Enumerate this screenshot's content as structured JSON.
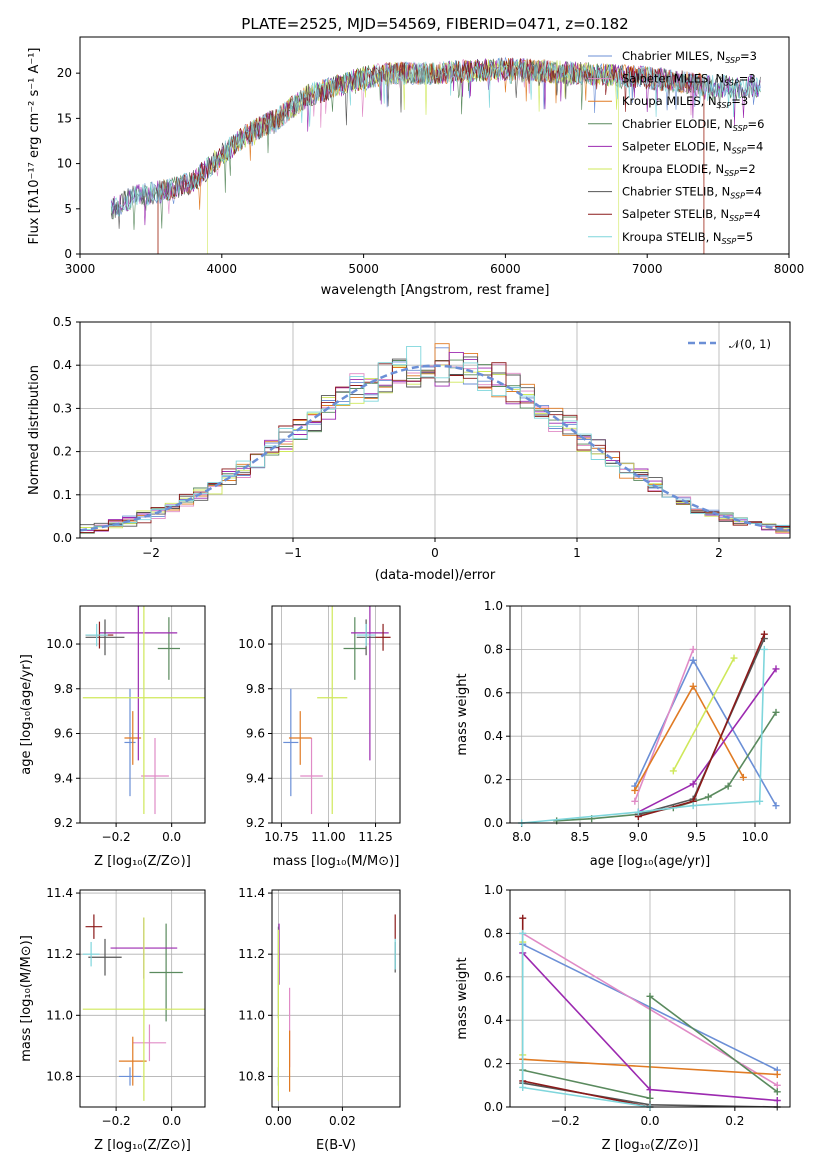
{
  "colors": {
    "chabrier_miles": "#6b8fd6",
    "salpeter_miles": "#e08bc6",
    "kroupa_miles": "#e07b24",
    "chabrier_elodie": "#5a8a5e",
    "salpeter_elodie": "#9c2ab0",
    "kroupa_elodie": "#cfe85a",
    "chabrier_stelib": "#555555",
    "salpeter_stelib": "#8b1a1a",
    "kroupa_stelib": "#7fd6dc",
    "gaussian": "#6b8fd6"
  },
  "chart_data": [
    {
      "id": "spectrum",
      "type": "line",
      "title": "PLATE=2525, MJD=54569, FIBERID=0471, z=0.182",
      "xlabel": "wavelength [Angstrom, rest frame]",
      "ylabel": "Flux [fλ10⁻¹⁷ erg cm⁻² s⁻¹ A⁻¹]",
      "xlim": [
        3000,
        8000
      ],
      "ylim": [
        0,
        24
      ],
      "xticks": [
        "3000",
        "4000",
        "5000",
        "6000",
        "7000",
        "8000"
      ],
      "yticks": [
        "0",
        "5",
        "10",
        "15",
        "20"
      ],
      "legend_position": "right",
      "legend": [
        {
          "main": "Chabrier MILES, N",
          "sub": "SSP",
          "tail": "=3"
        },
        {
          "main": "Salpeter MILES, N",
          "sub": "SSP",
          "tail": "=3"
        },
        {
          "main": "Kroupa MILES, N",
          "sub": "SSP",
          "tail": "=3"
        },
        {
          "main": "Chabrier ELODIE, N",
          "sub": "SSP",
          "tail": "=6"
        },
        {
          "main": "Salpeter ELODIE, N",
          "sub": "SSP",
          "tail": "=4"
        },
        {
          "main": "Kroupa ELODIE, N",
          "sub": "SSP",
          "tail": "=2"
        },
        {
          "main": "Chabrier STELIB, N",
          "sub": "SSP",
          "tail": "=4"
        },
        {
          "main": "Salpeter STELIB, N",
          "sub": "SSP",
          "tail": "=4"
        },
        {
          "main": "Kroupa STELIB, N",
          "sub": "SSP",
          "tail": "=5"
        }
      ],
      "continuum": {
        "x": [
          3220,
          3400,
          3600,
          3800,
          4000,
          4200,
          4400,
          4600,
          4800,
          5000,
          5200,
          5500,
          6000,
          6500,
          7000,
          7500,
          7800
        ],
        "y": [
          5,
          6.5,
          7,
          8,
          11,
          13.5,
          15,
          17.5,
          18.5,
          19.5,
          20,
          20,
          20.5,
          20,
          19.5,
          18.5,
          18.5
        ]
      },
      "model_ranges": [
        [
          3220,
          7800
        ],
        [
          3550,
          7400
        ],
        [
          3550,
          7400
        ],
        [
          3220,
          7800
        ],
        [
          3220,
          7800
        ],
        [
          3900,
          6800
        ],
        [
          3220,
          7800
        ],
        [
          3550,
          7400
        ],
        [
          3220,
          7800
        ]
      ]
    },
    {
      "id": "residuals",
      "type": "histogram",
      "xlabel": "(data-model)/error",
      "ylabel": "Normed distribution",
      "xlim": [
        -2.5,
        2.5
      ],
      "ylim": [
        0,
        0.5
      ],
      "xticks": [
        "−2",
        "−1",
        "0",
        "1",
        "2"
      ],
      "yticks": [
        "0.0",
        "0.1",
        "0.2",
        "0.3",
        "0.4",
        "0.5"
      ],
      "grid": true,
      "legend_position": "top-right",
      "gaussian_label": "𝒩(0, 1)",
      "bin_width": 0.1
    },
    {
      "id": "age_vs_Z",
      "type": "errorbar",
      "xlabel": "Z [log₁₀(Z/Z⊙)]",
      "ylabel": "age  [log₁₀(age/yr)]",
      "xlim": [
        -0.33,
        0.12
      ],
      "ylim": [
        9.2,
        10.17
      ],
      "xticks": [
        "−0.2",
        "0.0"
      ],
      "xtick_values": [
        -0.2,
        0.0
      ],
      "yticks": [
        "9.2",
        "9.4",
        "9.6",
        "9.8",
        "10.0"
      ],
      "ytick_values": [
        9.2,
        9.4,
        9.6,
        9.8,
        10.0
      ],
      "points": [
        {
          "c": "chabrier_miles",
          "x": -0.15,
          "xe": 0.02,
          "y": 9.56,
          "ye": 0.24
        },
        {
          "c": "salpeter_miles",
          "x": -0.06,
          "xe": 0.05,
          "y": 9.41,
          "ye": 0.17
        },
        {
          "c": "kroupa_miles",
          "x": -0.14,
          "xe": 0.03,
          "y": 9.58,
          "ye": 0.12
        },
        {
          "c": "chabrier_elodie",
          "x": -0.01,
          "xe": 0.04,
          "y": 9.98,
          "ye": 0.14
        },
        {
          "c": "salpeter_elodie",
          "x": -0.12,
          "xe": 0.14,
          "y": 10.05,
          "ye": 0.57
        },
        {
          "c": "kroupa_elodie",
          "x": -0.1,
          "xe": 0.22,
          "y": 9.76,
          "ye": 0.52
        },
        {
          "c": "chabrier_stelib",
          "x": -0.24,
          "xe": 0.07,
          "y": 10.03,
          "ye": 0.08
        },
        {
          "c": "salpeter_stelib",
          "x": -0.26,
          "xe": 0.05,
          "y": 10.04,
          "ye": 0.06
        },
        {
          "c": "kroupa_stelib",
          "x": -0.27,
          "xe": 0.04,
          "y": 10.04,
          "ye": 0.05
        }
      ]
    },
    {
      "id": "age_vs_mass",
      "type": "errorbar",
      "xlabel": "mass [log₁₀(M/M⊙)]",
      "ylabel": "",
      "xlim": [
        10.7,
        11.38
      ],
      "ylim": [
        9.2,
        10.17
      ],
      "xticks": [
        "10.75",
        "11.00",
        "11.25"
      ],
      "xtick_values": [
        10.75,
        11.0,
        11.25
      ],
      "yticks": [
        "9.2",
        "9.4",
        "9.6",
        "9.8",
        "10.0"
      ],
      "ytick_values": [
        9.2,
        9.4,
        9.6,
        9.8,
        10.0
      ],
      "points": [
        {
          "c": "chabrier_miles",
          "x": 10.8,
          "xe": 0.04,
          "y": 9.56,
          "ye": 0.24
        },
        {
          "c": "salpeter_miles",
          "x": 10.91,
          "xe": 0.06,
          "y": 9.41,
          "ye": 0.17
        },
        {
          "c": "kroupa_miles",
          "x": 10.85,
          "xe": 0.06,
          "y": 9.58,
          "ye": 0.12
        },
        {
          "c": "chabrier_elodie",
          "x": 11.14,
          "xe": 0.06,
          "y": 9.98,
          "ye": 0.14
        },
        {
          "c": "salpeter_elodie",
          "x": 11.22,
          "xe": 0.1,
          "y": 10.05,
          "ye": 0.57
        },
        {
          "c": "kroupa_elodie",
          "x": 11.02,
          "xe": 0.08,
          "y": 9.76,
          "ye": 0.52
        },
        {
          "c": "chabrier_stelib",
          "x": 11.2,
          "xe": 0.05,
          "y": 10.03,
          "ye": 0.08
        },
        {
          "c": "salpeter_stelib",
          "x": 11.29,
          "xe": 0.04,
          "y": 10.03,
          "ye": 0.06
        },
        {
          "c": "kroupa_stelib",
          "x": 11.2,
          "xe": 0.05,
          "y": 10.04,
          "ye": 0.05
        }
      ]
    },
    {
      "id": "mass_weight_vs_age",
      "type": "line",
      "xlabel": "age  [log₁₀(age/yr)]",
      "ylabel": "mass weight",
      "xlim": [
        7.9,
        10.3
      ],
      "ylim": [
        0,
        1
      ],
      "xticks": [
        "8.0",
        "8.5",
        "9.0",
        "9.5",
        "10.0"
      ],
      "xtick_values": [
        8.0,
        8.5,
        9.0,
        9.5,
        10.0
      ],
      "yticks": [
        "0.0",
        "0.2",
        "0.4",
        "0.6",
        "0.8",
        "1.0"
      ],
      "ytick_values": [
        0,
        0.2,
        0.4,
        0.6,
        0.8,
        1.0
      ],
      "grid": true,
      "series": [
        {
          "c": "chabrier_miles",
          "x": [
            8.97,
            9.47,
            10.18
          ],
          "y": [
            0.17,
            0.75,
            0.08
          ]
        },
        {
          "c": "salpeter_miles",
          "x": [
            8.97,
            9.47
          ],
          "y": [
            0.1,
            0.8
          ]
        },
        {
          "c": "kroupa_miles",
          "x": [
            8.97,
            9.47,
            9.9
          ],
          "y": [
            0.15,
            0.63,
            0.21
          ]
        },
        {
          "c": "chabrier_elodie",
          "x": [
            8.3,
            8.6,
            9.0,
            9.3,
            9.6,
            9.77,
            10.18
          ],
          "y": [
            0.01,
            0.02,
            0.04,
            0.07,
            0.12,
            0.17,
            0.51
          ]
        },
        {
          "c": "salpeter_elodie",
          "x": [
            9.0,
            9.47,
            10.18
          ],
          "y": [
            0.05,
            0.18,
            0.71
          ]
        },
        {
          "c": "kroupa_elodie",
          "x": [
            9.3,
            9.82
          ],
          "y": [
            0.24,
            0.76
          ]
        },
        {
          "c": "chabrier_stelib",
          "x": [
            9.0,
            9.47,
            10.08
          ],
          "y": [
            0.04,
            0.11,
            0.85
          ]
        },
        {
          "c": "salpeter_stelib",
          "x": [
            9.0,
            9.47,
            10.08
          ],
          "y": [
            0.03,
            0.1,
            0.87
          ]
        },
        {
          "c": "kroupa_stelib",
          "x": [
            8.0,
            9.0,
            9.47,
            10.04,
            10.08
          ],
          "y": [
            0.0,
            0.05,
            0.08,
            0.1,
            0.8
          ]
        }
      ]
    },
    {
      "id": "mass_vs_Z",
      "type": "errorbar",
      "xlabel": "Z [log₁₀(Z/Z⊙)]",
      "ylabel": "mass [log₁₀(M/M⊙)]",
      "xlim": [
        -0.33,
        0.12
      ],
      "ylim": [
        10.7,
        11.41
      ],
      "xticks": [
        "−0.2",
        "0.0"
      ],
      "xtick_values": [
        -0.2,
        0.0
      ],
      "yticks": [
        "10.8",
        "11.0",
        "11.2",
        "11.4"
      ],
      "ytick_values": [
        10.8,
        11.0,
        11.2,
        11.4
      ],
      "points": [
        {
          "c": "chabrier_miles",
          "x": -0.15,
          "xe": 0.04,
          "y": 10.8,
          "ye": 0.03
        },
        {
          "c": "salpeter_miles",
          "x": -0.08,
          "xe": 0.06,
          "y": 10.91,
          "ye": 0.06
        },
        {
          "c": "kroupa_miles",
          "x": -0.14,
          "xe": 0.05,
          "y": 10.85,
          "ye": 0.08
        },
        {
          "c": "chabrier_elodie",
          "x": -0.02,
          "xe": 0.06,
          "y": 11.14,
          "ye": 0.16
        },
        {
          "c": "salpeter_elodie",
          "x": -0.1,
          "xe": 0.12,
          "y": 11.22,
          "ye": 0.1
        },
        {
          "c": "kroupa_elodie",
          "x": -0.1,
          "xe": 0.22,
          "y": 11.02,
          "ye": 0.3
        },
        {
          "c": "chabrier_stelib",
          "x": -0.24,
          "xe": 0.06,
          "y": 11.19,
          "ye": 0.06
        },
        {
          "c": "salpeter_stelib",
          "x": -0.28,
          "xe": 0.03,
          "y": 11.29,
          "ye": 0.04
        },
        {
          "c": "kroupa_stelib",
          "x": -0.29,
          "xe": 0.03,
          "y": 11.2,
          "ye": 0.04
        }
      ]
    },
    {
      "id": "mass_vs_ebv",
      "type": "errorbar",
      "xlabel": "E(B-V)",
      "ylabel": "",
      "xlim": [
        -0.002,
        0.038
      ],
      "ylim": [
        10.7,
        11.41
      ],
      "xticks": [
        "0.00",
        "0.02"
      ],
      "xtick_values": [
        0.0,
        0.02
      ],
      "yticks": [
        "10.8",
        "11.0",
        "11.2",
        "11.4"
      ],
      "ytick_values": [
        10.8,
        11.0,
        11.2,
        11.4
      ],
      "points": [
        {
          "c": "chabrier_miles",
          "x": 0.0,
          "xe": 0.0,
          "y": 10.8,
          "ye": 0.03
        },
        {
          "c": "salpeter_miles",
          "x": 0.0035,
          "xe": 0.0,
          "y": 10.96,
          "ye": 0.13
        },
        {
          "c": "kroupa_miles",
          "x": 0.0035,
          "xe": 0.0,
          "y": 10.85,
          "ye": 0.1
        },
        {
          "c": "chabrier_elodie",
          "x": 0.0,
          "xe": 0.0,
          "y": 11.14,
          "ye": 0.15
        },
        {
          "c": "salpeter_elodie",
          "x": 0.0002,
          "xe": 0.0,
          "y": 11.2,
          "ye": 0.1
        },
        {
          "c": "kroupa_elodie",
          "x": 0.0,
          "xe": 0.0,
          "y": 11.0,
          "ye": 0.28
        },
        {
          "c": "chabrier_stelib",
          "x": 0.0365,
          "xe": 0.0,
          "y": 11.19,
          "ye": 0.05
        },
        {
          "c": "salpeter_stelib",
          "x": 0.0365,
          "xe": 0.0,
          "y": 11.29,
          "ye": 0.04
        },
        {
          "c": "kroupa_stelib",
          "x": 0.0365,
          "xe": 0.0,
          "y": 11.2,
          "ye": 0.05
        }
      ]
    },
    {
      "id": "mass_weight_vs_Z",
      "type": "line",
      "xlabel": "Z [log₁₀(Z/Z⊙)]",
      "ylabel": "mass weight",
      "xlim": [
        -0.33,
        0.33
      ],
      "ylim": [
        0,
        1
      ],
      "xticks": [
        "−0.2",
        "0.0",
        "0.2"
      ],
      "xtick_values": [
        -0.2,
        0.0,
        0.2
      ],
      "yticks": [
        "0.0",
        "0.2",
        "0.4",
        "0.6",
        "0.8",
        "1.0"
      ],
      "ytick_values": [
        0,
        0.2,
        0.4,
        0.6,
        0.8,
        1.0
      ],
      "grid": true,
      "series": [
        {
          "c": "chabrier_miles",
          "x": [
            -0.3,
            0.3
          ],
          "y": [
            0.75,
            0.17
          ]
        },
        {
          "c": "salpeter_miles",
          "x": [
            -0.3,
            0.3
          ],
          "y": [
            0.8,
            0.1
          ]
        },
        {
          "c": "kroupa_miles",
          "x": [
            -0.3,
            0.3
          ],
          "y": [
            0.22,
            0.15
          ]
        },
        {
          "c": "chabrier_elodie",
          "x": [
            -0.3,
            0.0,
            0.0,
            0.3
          ],
          "y": [
            0.17,
            0.04,
            0.51,
            0.07
          ]
        },
        {
          "c": "salpeter_elodie",
          "x": [
            -0.3,
            0.0,
            0.3
          ],
          "y": [
            0.71,
            0.08,
            0.03
          ]
        },
        {
          "c": "kroupa_elodie",
          "x": [
            -0.3,
            -0.3
          ],
          "y": [
            0.24,
            0.76
          ]
        },
        {
          "c": "chabrier_stelib",
          "x": [
            -0.3,
            0.0,
            0.3
          ],
          "y": [
            0.11,
            0.01,
            0.0
          ]
        },
        {
          "c": "salpeter_stelib",
          "x": [
            -0.3,
            -0.3,
            0.0
          ],
          "y": [
            0.87,
            0.12,
            0.0
          ]
        },
        {
          "c": "kroupa_stelib",
          "x": [
            -0.3,
            -0.3,
            0.0
          ],
          "y": [
            0.8,
            0.09,
            0.0
          ]
        }
      ]
    }
  ]
}
